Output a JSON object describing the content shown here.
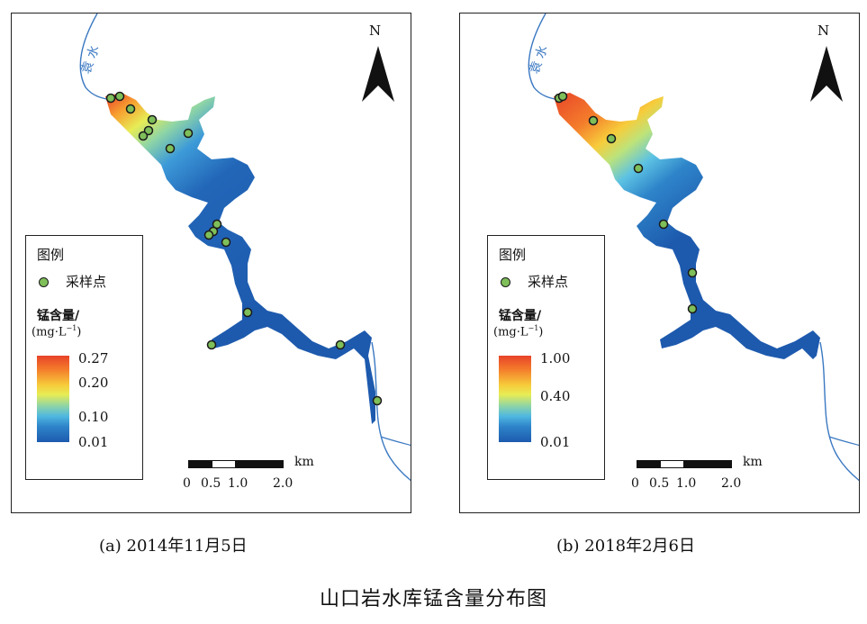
{
  "panels": [
    {
      "id": "a",
      "caption": "(a) 2014年11月5日",
      "river_label": "袁 水",
      "north_label": "N",
      "legend": {
        "title": "图例",
        "sample_label": "采样点",
        "quantity": "锰含量/",
        "unit": "(mg·L",
        "unit_sup": "−1",
        "unit_close": ")",
        "ticks": [
          "0.27",
          "0.20",
          "0.10",
          "0.01"
        ]
      },
      "scale": {
        "unit": "km",
        "labels": [
          "0",
          "0.5",
          "1.0",
          "2.0"
        ]
      },
      "color_max": "#e8432a",
      "color_min": "#1d5aae"
    },
    {
      "id": "b",
      "caption": "(b) 2018年2月6日",
      "river_label": "袁 水",
      "north_label": "N",
      "legend": {
        "title": "图例",
        "sample_label": "采样点",
        "quantity": "锰含量/",
        "unit": "(mg·L",
        "unit_sup": "−1",
        "unit_close": ")",
        "ticks": [
          "1.00",
          "0.40",
          "0.01"
        ]
      },
      "scale": {
        "unit": "km",
        "labels": [
          "0",
          "0.5",
          "1.0",
          "2.0"
        ]
      },
      "color_max": "#e8432a",
      "color_min": "#1d5aae"
    }
  ],
  "figure_title": "山口岩水库锰含量分布图",
  "colors": {
    "river": "#3a78c2",
    "sample_point": "#7fbf5a"
  }
}
